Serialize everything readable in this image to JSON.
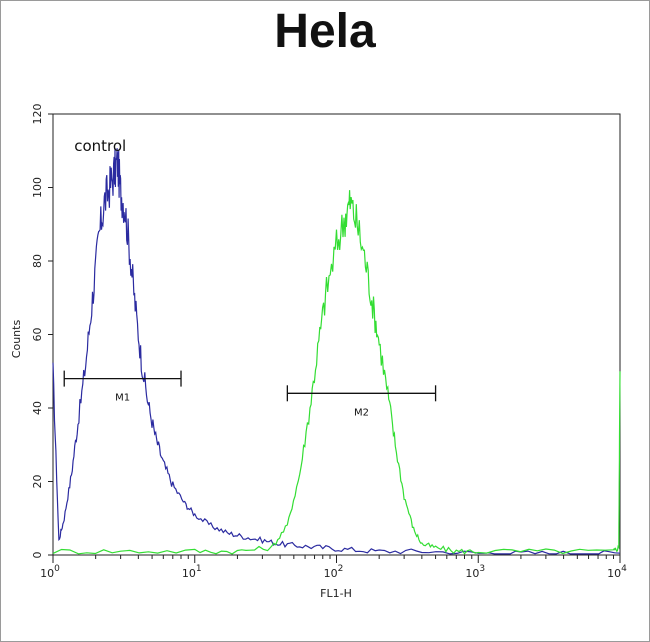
{
  "chart_data": {
    "type": "line",
    "title": "Hela",
    "xlabel": "FL1-H",
    "ylabel": "Counts",
    "x_scale": "log",
    "xlim": [
      1,
      10000
    ],
    "ylim": [
      0,
      120
    ],
    "x_ticks": [
      {
        "value": 1,
        "base": "10",
        "exp": "0"
      },
      {
        "value": 10,
        "base": "10",
        "exp": "1"
      },
      {
        "value": 100,
        "base": "10",
        "exp": "2"
      },
      {
        "value": 1000,
        "base": "10",
        "exp": "3"
      },
      {
        "value": 10000,
        "base": "10",
        "exp": "4"
      }
    ],
    "y_ticks": [
      0,
      20,
      40,
      60,
      80,
      100,
      120
    ],
    "grid": false,
    "series": [
      {
        "name": "control",
        "color": "#2b2ba0",
        "x": [
          1,
          1.1,
          1.2,
          1.35,
          1.5,
          1.7,
          1.9,
          2.1,
          2.3,
          2.5,
          2.7,
          2.85,
          3.0,
          3.2,
          3.5,
          3.8,
          4.2,
          4.7,
          5.3,
          6.0,
          7.0,
          8.5,
          10,
          13,
          17,
          22,
          30,
          40,
          55,
          80,
          120,
          200,
          400,
          1000,
          2000,
          5000,
          10000
        ],
        "values": [
          50,
          4,
          10,
          22,
          36,
          52,
          70,
          86,
          96,
          100,
          104,
          107,
          99,
          95,
          82,
          68,
          53,
          41,
          32,
          25,
          19,
          14,
          11,
          8,
          6,
          5,
          4,
          3,
          2.5,
          2,
          1.5,
          1,
          1,
          0.5,
          0.5,
          0.5,
          0.5
        ]
      },
      {
        "name": "",
        "color": "#33dd33",
        "x": [
          1,
          3,
          10,
          20,
          35,
          45,
          55,
          65,
          75,
          85,
          100,
          115,
          125,
          140,
          160,
          180,
          200,
          230,
          260,
          300,
          350,
          400,
          500,
          700,
          1000,
          3000,
          9000,
          9800,
          10000
        ],
        "values": [
          1,
          1,
          1,
          1,
          2,
          8,
          22,
          40,
          58,
          72,
          84,
          92,
          96,
          90,
          80,
          68,
          58,
          44,
          30,
          16,
          7,
          3,
          2,
          1,
          1,
          1,
          1,
          2,
          50
        ]
      }
    ],
    "markers": [
      {
        "label": "M1",
        "x_start": 1.2,
        "x_end": 8,
        "y": 48
      },
      {
        "label": "M2",
        "x_start": 45,
        "x_end": 500,
        "y": 44
      }
    ],
    "annotations": [
      {
        "text": "control",
        "x": 1.2,
        "y": 110
      }
    ]
  }
}
